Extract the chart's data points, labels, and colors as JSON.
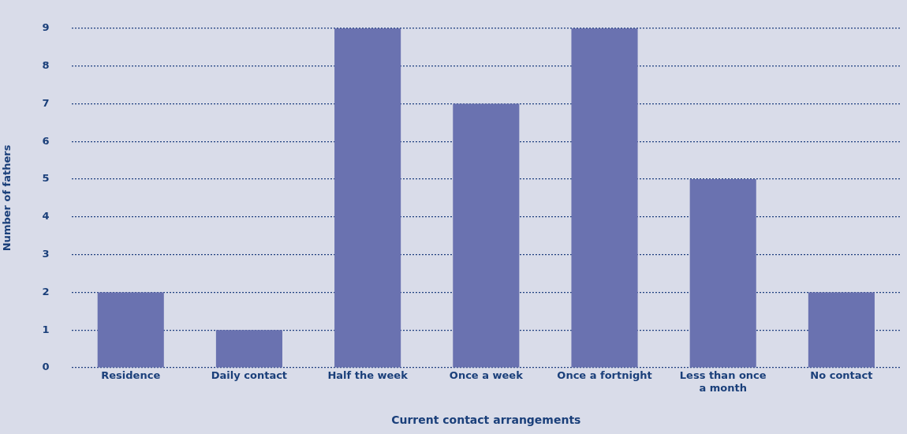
{
  "chart_data": {
    "type": "bar",
    "xlabel": "Current contact arrangements",
    "ylabel": "Number of fathers",
    "categories": [
      "Residence",
      "Daily contact",
      "Half the week",
      "Once a week",
      "Once a fortnight",
      "Less than once a month",
      "No contact"
    ],
    "values": [
      2,
      1,
      9,
      7,
      9,
      5,
      2
    ],
    "color": "#6a72b0",
    "ylim": [
      0,
      9
    ],
    "yticks": [
      0,
      1,
      2,
      3,
      4,
      5,
      6,
      7,
      8,
      9
    ],
    "grid": "y",
    "legend": false
  }
}
